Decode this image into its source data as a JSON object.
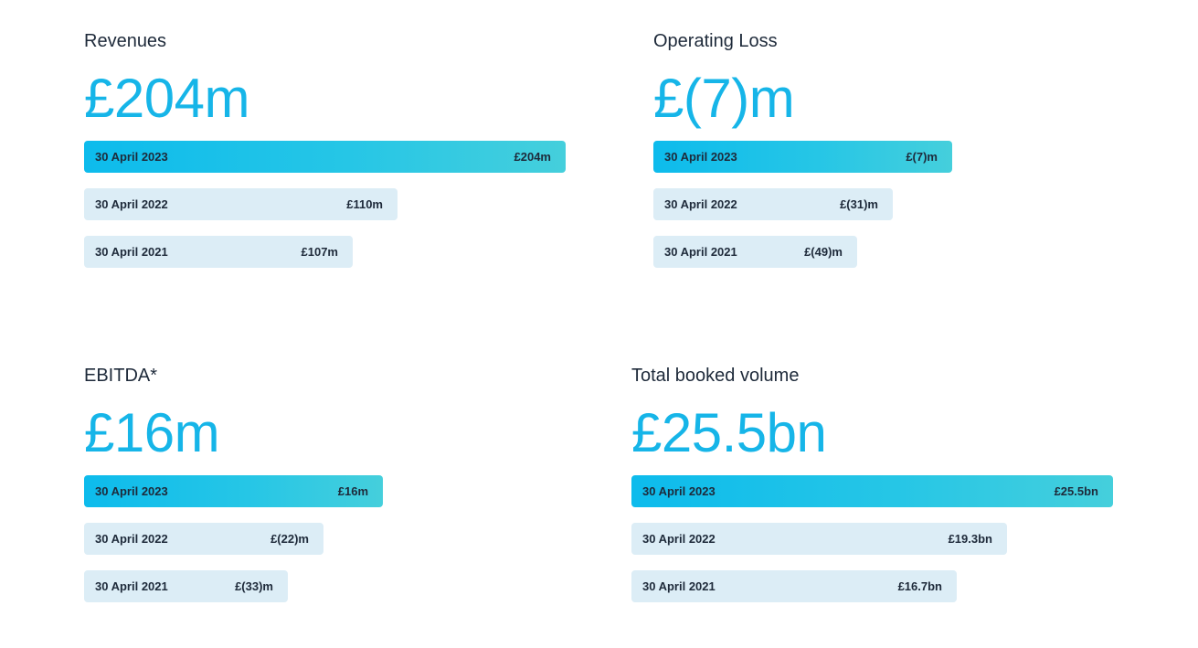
{
  "colors": {
    "accent": "#16b5e8",
    "current_bar_gradient_start": "#0dbbec",
    "current_bar_gradient_end": "#45cfdc",
    "previous_bar": "#dcedf6",
    "text": "#1e2a3a"
  },
  "chart_data": [
    {
      "type": "bar",
      "orientation": "horizontal",
      "title": "Revenues",
      "headline": "£204m",
      "categories": [
        "30 April 2023",
        "30 April 2022",
        "30 April 2021"
      ],
      "values": [
        204,
        110,
        107
      ],
      "value_labels": [
        "£204m",
        "£110m",
        "£107m"
      ],
      "unit": "£m",
      "xlim": [
        0,
        204
      ]
    },
    {
      "type": "bar",
      "orientation": "horizontal",
      "title": "Operating Loss",
      "headline": "£(7)m",
      "categories": [
        "30 April 2023",
        "30 April 2022",
        "30 April 2021"
      ],
      "values": [
        -7,
        -31,
        -49
      ],
      "value_labels": [
        "£(7)m",
        "£(31)m",
        "£(49)m"
      ],
      "unit": "£m"
    },
    {
      "type": "bar",
      "orientation": "horizontal",
      "title": "EBITDA*",
      "headline": "£16m",
      "categories": [
        "30 April 2023",
        "30 April 2022",
        "30 April 2021"
      ],
      "values": [
        16,
        -22,
        -33
      ],
      "value_labels": [
        "£16m",
        "£(22)m",
        "£(33)m"
      ],
      "unit": "£m"
    },
    {
      "type": "bar",
      "orientation": "horizontal",
      "title": "Total booked volume",
      "headline": "£25.5bn",
      "categories": [
        "30 April 2023",
        "30 April 2022",
        "30 April 2021"
      ],
      "values": [
        25.5,
        19.3,
        16.7
      ],
      "value_labels": [
        "£25.5bn",
        "£19.3bn",
        "£16.7bn"
      ],
      "unit": "£bn",
      "xlim": [
        0,
        25.5
      ]
    }
  ]
}
